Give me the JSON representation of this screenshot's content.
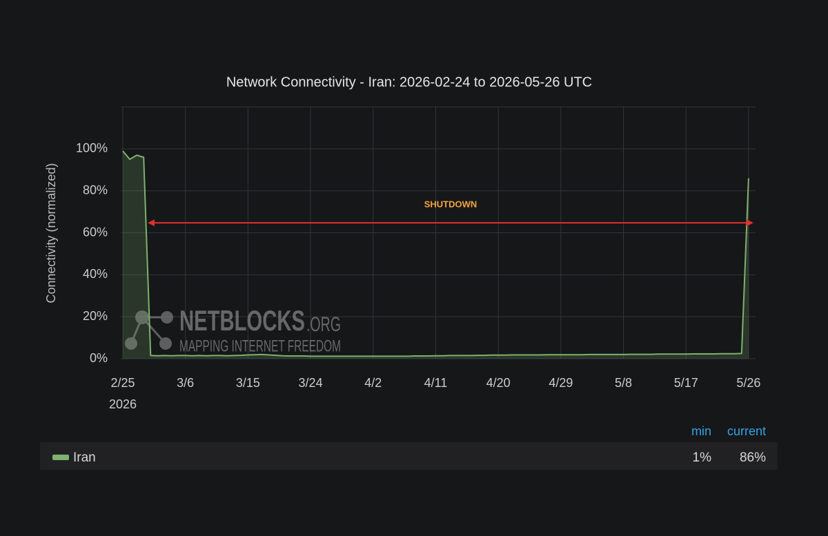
{
  "chart_data": {
    "type": "line",
    "title": "Network Connectivity - Iran: 2026-02-24 to 2026-05-26 UTC",
    "y_label": "Connectivity (normalized)",
    "x_year_label": "2026",
    "annotation": "SHUTDOWN",
    "watermark": {
      "name": "NETBLOCKS",
      "suffix": ".ORG",
      "tagline": "MAPPING INTERNET FREEDOM"
    },
    "grid": true,
    "ylim": [
      0,
      120
    ],
    "yticks": [
      {
        "value": 0,
        "label": "0%"
      },
      {
        "value": 20,
        "label": "20%"
      },
      {
        "value": 40,
        "label": "40%"
      },
      {
        "value": 60,
        "label": "60%"
      },
      {
        "value": 80,
        "label": "80%"
      },
      {
        "value": 100,
        "label": "100%"
      }
    ],
    "xlim": [
      "2026-02-25",
      "2026-05-27"
    ],
    "xticks": [
      {
        "value": "2026-02-25",
        "label": "2/25"
      },
      {
        "value": "2026-03-06",
        "label": "3/6"
      },
      {
        "value": "2026-03-15",
        "label": "3/15"
      },
      {
        "value": "2026-03-24",
        "label": "3/24"
      },
      {
        "value": "2026-04-02",
        "label": "4/2"
      },
      {
        "value": "2026-04-11",
        "label": "4/11"
      },
      {
        "value": "2026-04-20",
        "label": "4/20"
      },
      {
        "value": "2026-04-29",
        "label": "4/29"
      },
      {
        "value": "2026-05-08",
        "label": "5/8"
      },
      {
        "value": "2026-05-17",
        "label": "5/17"
      },
      {
        "value": "2026-05-26",
        "label": "5/26"
      }
    ],
    "x": [
      "2026-02-25",
      "2026-02-26",
      "2026-02-27",
      "2026-02-28",
      "2026-03-01",
      "2026-03-02",
      "2026-03-03",
      "2026-03-04",
      "2026-03-05",
      "2026-03-06",
      "2026-03-07",
      "2026-03-08",
      "2026-03-09",
      "2026-03-10",
      "2026-03-11",
      "2026-03-12",
      "2026-03-13",
      "2026-03-14",
      "2026-03-15",
      "2026-03-16",
      "2026-03-17",
      "2026-03-18",
      "2026-03-19",
      "2026-03-20",
      "2026-03-21",
      "2026-03-22",
      "2026-03-23",
      "2026-03-24",
      "2026-03-25",
      "2026-03-26",
      "2026-03-27",
      "2026-03-28",
      "2026-03-29",
      "2026-03-30",
      "2026-03-31",
      "2026-04-01",
      "2026-04-02",
      "2026-04-03",
      "2026-04-04",
      "2026-04-05",
      "2026-04-06",
      "2026-04-07",
      "2026-04-08",
      "2026-04-09",
      "2026-04-10",
      "2026-04-11",
      "2026-04-12",
      "2026-04-13",
      "2026-04-14",
      "2026-04-15",
      "2026-04-16",
      "2026-04-17",
      "2026-04-18",
      "2026-04-19",
      "2026-04-20",
      "2026-04-21",
      "2026-04-22",
      "2026-04-23",
      "2026-04-24",
      "2026-04-25",
      "2026-04-26",
      "2026-04-27",
      "2026-04-28",
      "2026-04-29",
      "2026-04-30",
      "2026-05-01",
      "2026-05-02",
      "2026-05-03",
      "2026-05-04",
      "2026-05-05",
      "2026-05-06",
      "2026-05-07",
      "2026-05-08",
      "2026-05-09",
      "2026-05-10",
      "2026-05-11",
      "2026-05-12",
      "2026-05-13",
      "2026-05-14",
      "2026-05-15",
      "2026-05-16",
      "2026-05-17",
      "2026-05-18",
      "2026-05-19",
      "2026-05-20",
      "2026-05-21",
      "2026-05-22",
      "2026-05-23",
      "2026-05-24",
      "2026-05-25",
      "2026-05-26"
    ],
    "legend_columns": [
      "min",
      "current"
    ],
    "series": [
      {
        "name": "Iran",
        "color": "#7eb26d",
        "legend_values": [
          "1%",
          "86%"
        ],
        "values": [
          99,
          95,
          97,
          96,
          1.5,
          1.4,
          1.5,
          1.4,
          1.5,
          1.5,
          1.4,
          1.5,
          1.4,
          1.5,
          1.5,
          1.4,
          1.5,
          1.6,
          1.8,
          1.9,
          2.0,
          1.8,
          1.6,
          1.4,
          1.3,
          1.3,
          1.3,
          1.2,
          1.2,
          1.2,
          1.2,
          1.2,
          1.2,
          1.2,
          1.2,
          1.2,
          1.2,
          1.2,
          1.2,
          1.2,
          1.2,
          1.2,
          1.3,
          1.3,
          1.3,
          1.4,
          1.4,
          1.5,
          1.5,
          1.5,
          1.5,
          1.6,
          1.6,
          1.7,
          1.7,
          1.7,
          1.8,
          1.8,
          1.8,
          1.8,
          1.8,
          1.9,
          1.9,
          1.9,
          1.9,
          1.9,
          1.9,
          2.0,
          2.0,
          2.0,
          2.0,
          2.0,
          2.0,
          2.1,
          2.1,
          2.1,
          2.1,
          2.2,
          2.2,
          2.2,
          2.2,
          2.2,
          2.3,
          2.3,
          2.3,
          2.3,
          2.4,
          2.4,
          2.4,
          2.5,
          86
        ]
      }
    ]
  }
}
